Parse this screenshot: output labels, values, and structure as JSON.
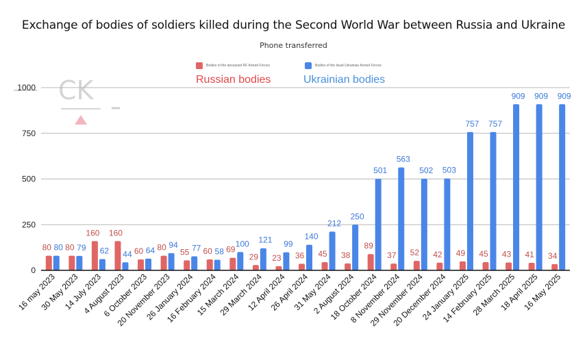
{
  "chart_data": {
    "type": "bar",
    "title": "Exchange of bodies of soldiers killed during the Second World War between Russia and Ukraine",
    "subtitle": "Phone transferred",
    "xlabel": "",
    "ylabel": "",
    "ylim": [
      0,
      1000
    ],
    "yticks": [
      0,
      250,
      500,
      750,
      1000
    ],
    "grid": true,
    "legend_position": "top-center",
    "categories": [
      "16 may 2023",
      "30 May 2023",
      "14 July 2023",
      "4 August 2023",
      "6 October 2023",
      "20 November 2023",
      "26 January 2024",
      "16 February 2024",
      "15 March 2024",
      "29 March 2024",
      "12 April 2024",
      "26 April 2024",
      "31 May 2024",
      "2 August 2024",
      "18 October 2024",
      "8 November 2024",
      "29 November 2024",
      "20 December 2024",
      "24 January 2025",
      "14 February 2025",
      "28 March 2025",
      "18 April 2025",
      "16 May 2025"
    ],
    "series": [
      {
        "name": "Bodies of the deceased RF Armed Forces",
        "annotation": "Russian bodies",
        "color": "#e06666",
        "label_color": "#c0504d",
        "values": [
          80,
          80,
          160,
          160,
          60,
          80,
          55,
          60,
          69,
          29,
          23,
          36,
          45,
          38,
          89,
          37,
          52,
          42,
          49,
          45,
          43,
          41,
          34
        ]
      },
      {
        "name": "Bodies of the dead Ukrainian Armed Forces",
        "annotation": "Ukrainian bodies",
        "color": "#4a86e8",
        "label_color": "#3c78d8",
        "values": [
          80,
          79,
          62,
          44,
          64,
          94,
          77,
          58,
          100,
          121,
          99,
          140,
          212,
          250,
          501,
          563,
          502,
          503,
          757,
          757,
          909,
          909,
          909
        ]
      }
    ]
  },
  "watermark": {
    "text": "CK",
    "icon": "triangle-logo-icon"
  }
}
